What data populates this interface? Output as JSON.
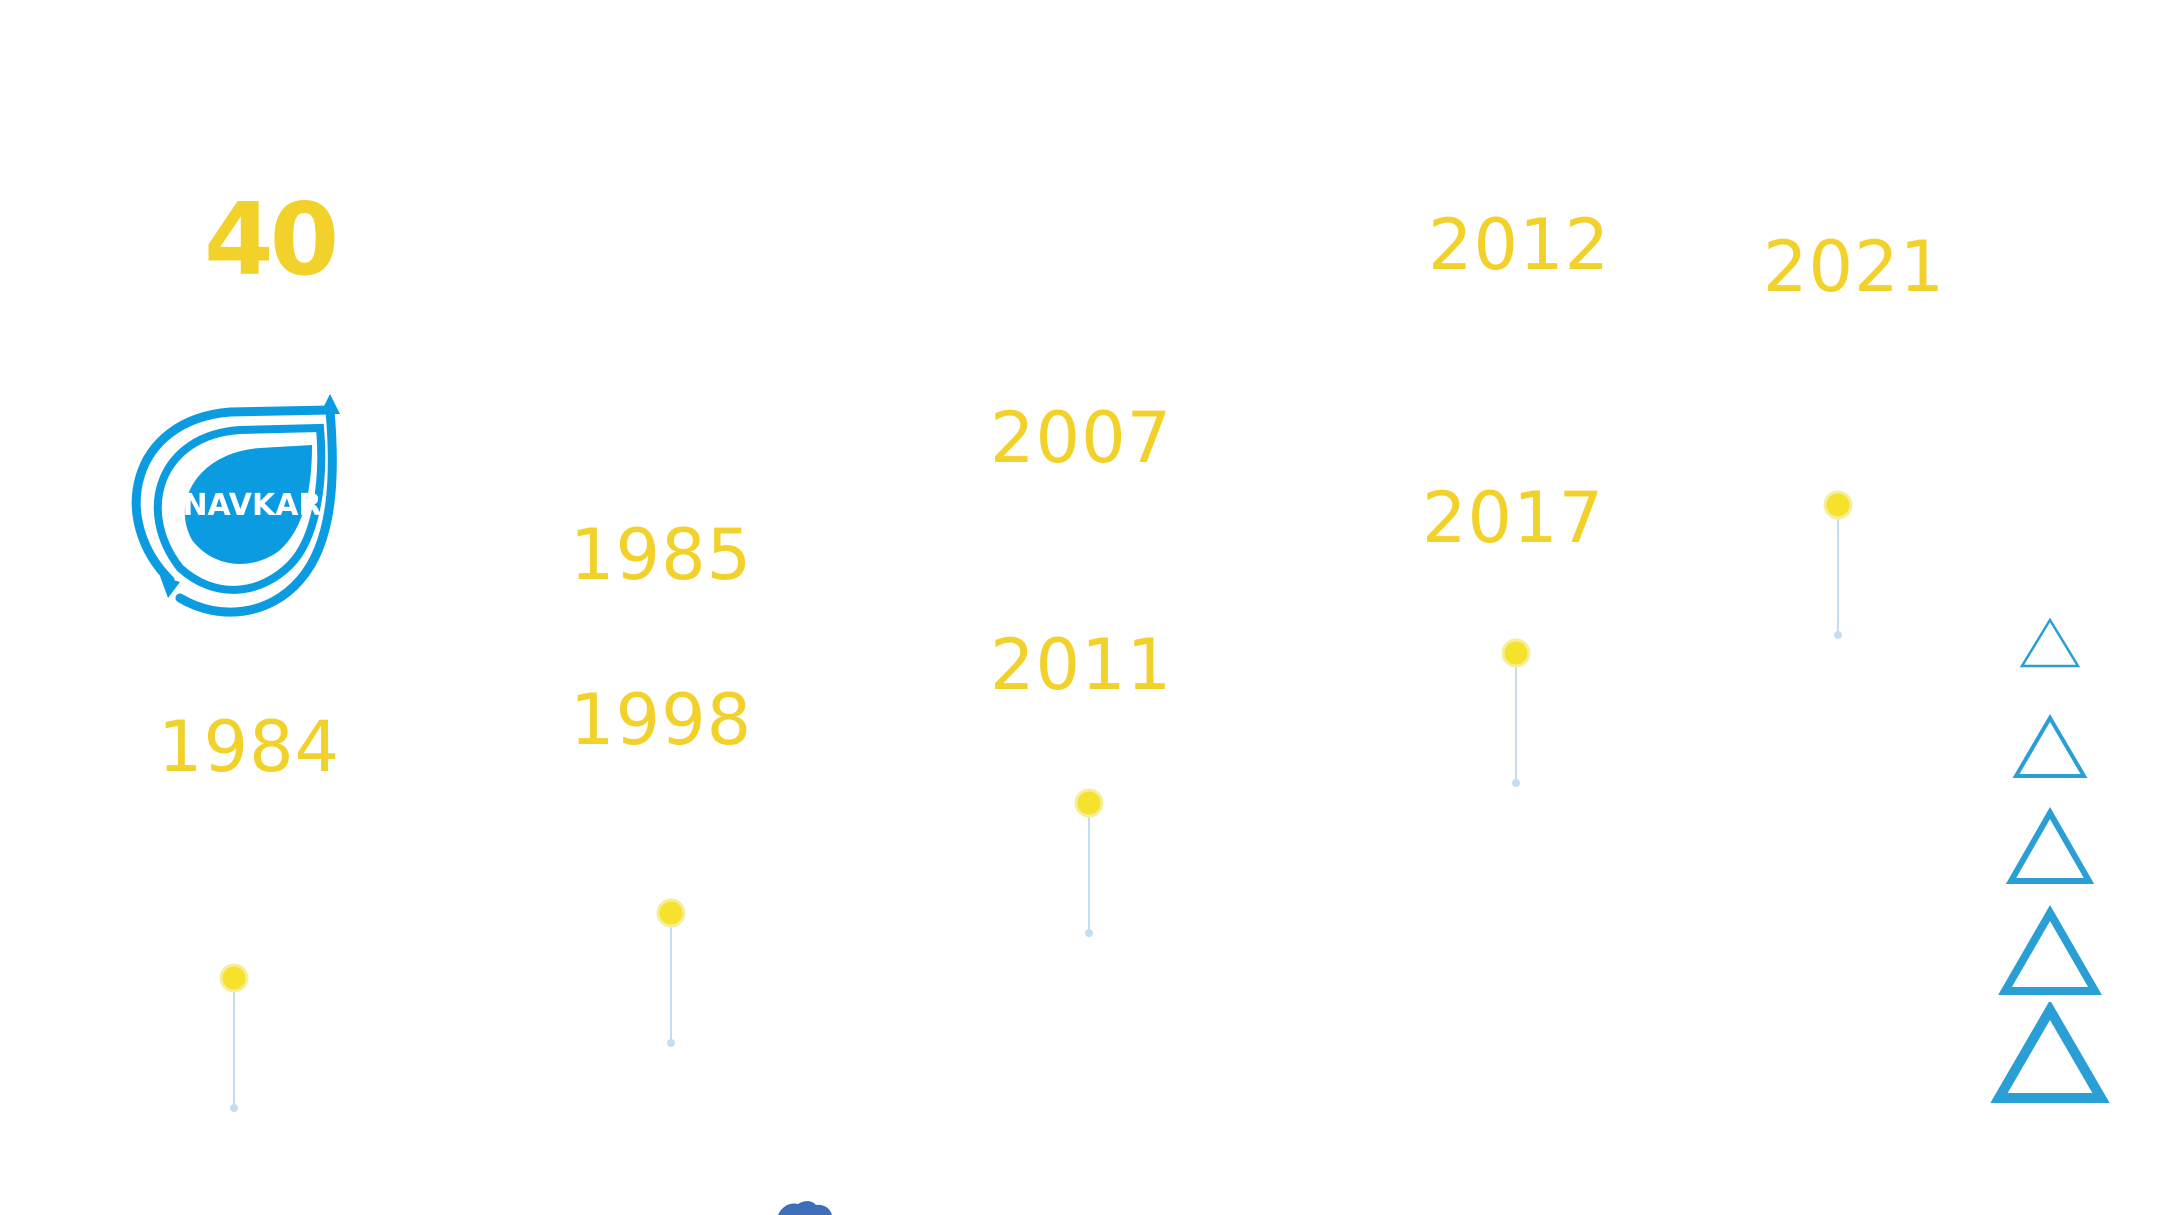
{
  "headline": {
    "years_count": "40"
  },
  "logo": {
    "text": "NAVKAR",
    "color": "#0a9be0"
  },
  "timeline": [
    {
      "year": "1984"
    },
    {
      "year": "1985"
    },
    {
      "year": "1998"
    },
    {
      "year": "2007"
    },
    {
      "year": "2011"
    },
    {
      "year": "2012"
    },
    {
      "year": "2017"
    },
    {
      "year": "2021"
    }
  ],
  "colors": {
    "year_text": "#f2d12a",
    "pin_dot": "#f6e12d",
    "pin_line": "#c5ddf2",
    "nav_arrow": "#2a9fd6"
  },
  "navigation": {
    "arrows": [
      "triangle-up-icon",
      "triangle-up-icon",
      "triangle-up-icon",
      "triangle-up-icon",
      "triangle-up-icon"
    ]
  }
}
